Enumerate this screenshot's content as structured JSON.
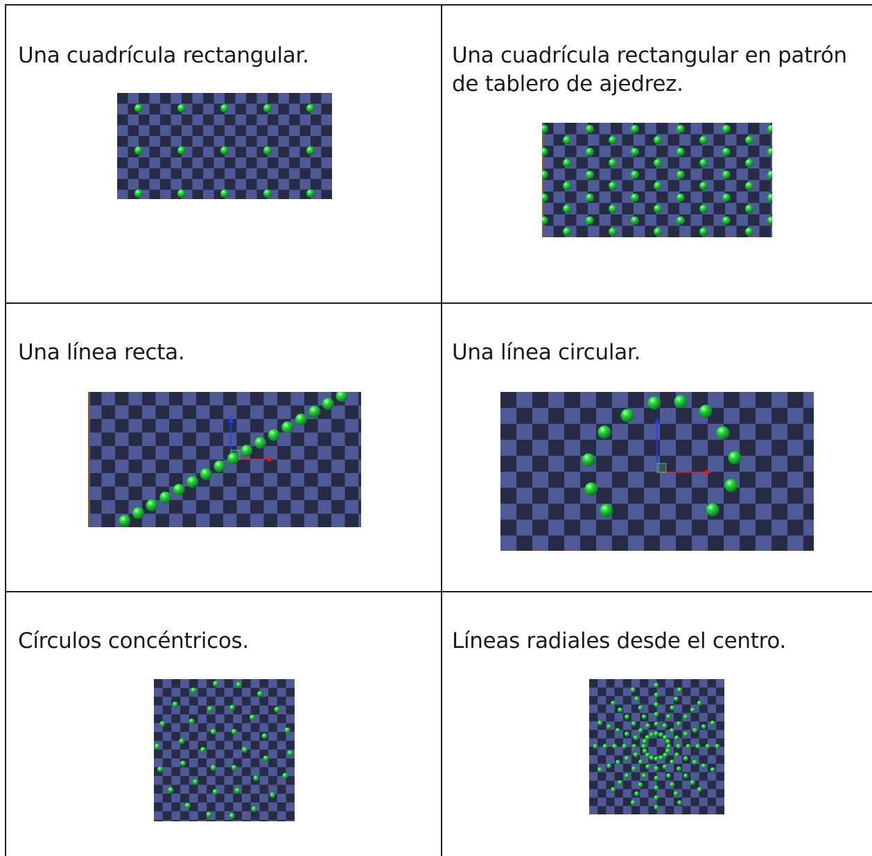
{
  "cells": [
    {
      "title": "Una cuadrícula rectangular.",
      "pattern": "rectangular-grid"
    },
    {
      "title": "Una cuadrícula rectangular en patrón de tablero de ajedrez.",
      "pattern": "checkerboard-grid"
    },
    {
      "title": "Una línea recta.",
      "pattern": "straight-line"
    },
    {
      "title": "Una línea circular.",
      "pattern": "circular-line"
    },
    {
      "title": "Círculos concéntricos.",
      "pattern": "concentric-circles"
    },
    {
      "title": "Líneas radiales desde el centro.",
      "pattern": "radial-lines"
    }
  ],
  "colors": {
    "checker_light": "#4e5a96",
    "checker_dark": "#272b46",
    "sphere": "#22d83a",
    "axis_up": "#1e3cff",
    "axis_right": "#e01c1c",
    "border": "#1f1f1f"
  }
}
